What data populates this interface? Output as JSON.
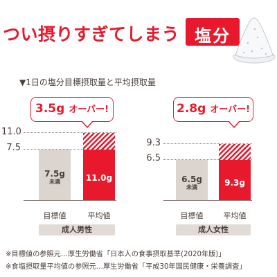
{
  "headline": "つい摂りすぎてしまう",
  "badge": "塩分",
  "subtitle": "▼1日の塩分目標摂取量と平均摂取量",
  "charts": [
    {
      "group": "成人男性",
      "callout_value": "3.5g",
      "callout_suffix": "オーバー!",
      "ticks": [
        "11.0",
        "7.5"
      ],
      "target": {
        "label": "目標値",
        "value_text": "7.5g",
        "note": "未満",
        "value": 7.5
      },
      "average": {
        "label": "平均値",
        "value_text": "11.0g",
        "value": 11.0
      }
    },
    {
      "group": "成人女性",
      "callout_value": "2.8g",
      "callout_suffix": "オーバー!",
      "ticks": [
        "9.3",
        "6.5"
      ],
      "target": {
        "label": "目標値",
        "value_text": "6.5g",
        "note": "未満",
        "value": 6.5
      },
      "average": {
        "label": "平均値",
        "value_text": "9.3g",
        "value": 9.3
      }
    }
  ],
  "notes": [
    "※目標値の参照元…厚生労働省「日本人の食事摂取基準(2020年版)」",
    "※食塩摂取量平均値の参照元…厚生労働省「平成30年国民健康・栄養調査」"
  ],
  "colors": {
    "accent": "#e8192c",
    "target_bar": "#dcd4cf",
    "pill": "#e2dad5",
    "text": "#4a3f3a"
  }
}
